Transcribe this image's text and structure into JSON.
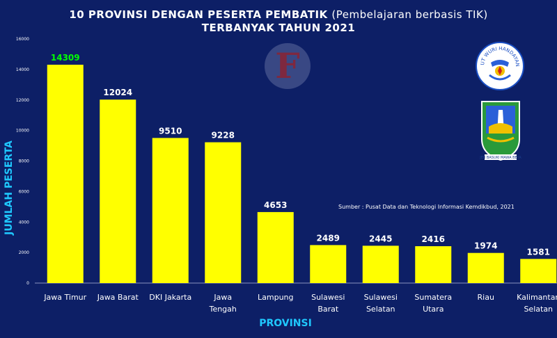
{
  "header": {
    "title_bold": "10 PROVINSI DENGAN PESERTA PEMBATIK",
    "title_paren": "(Pembelajaran berbasis TIK)",
    "title_line2": "TERBANYAK TAHUN 2021"
  },
  "source": "Sumber :  Pusat Data dan Teknologi Informasi Kemdikbud, 2021",
  "watermark": "F",
  "logos": {
    "kemdikbud_text": "TUT WURI HANDAYANI",
    "jatim_text": "JER BASUKI MAWA BEYA"
  },
  "colors": {
    "background": "#0d1f66",
    "bar": "#ffff00",
    "axis_title": "#1fc8ff",
    "highlight_label": "#00ff00",
    "text": "#ffffff"
  },
  "chart_data": {
    "type": "bar",
    "title": "10 PROVINSI DENGAN PESERTA PEMBATIK (Pembelajaran berbasis TIK) TERBANYAK TAHUN 2021",
    "xlabel": "PROVINSI",
    "ylabel": "JUMLAH PESERTA",
    "ylim": [
      0,
      16000
    ],
    "yticks": [
      0,
      2000,
      4000,
      6000,
      8000,
      10000,
      12000,
      14000,
      16000
    ],
    "categories": [
      [
        "Jawa Timur"
      ],
      [
        "Jawa Barat"
      ],
      [
        "DKI Jakarta"
      ],
      [
        "Jawa",
        "Tengah"
      ],
      [
        "Lampung"
      ],
      [
        "Sulawesi",
        "Barat"
      ],
      [
        "Sulawesi",
        "Selatan"
      ],
      [
        "Sumatera",
        "Utara"
      ],
      [
        "Riau"
      ],
      [
        "Kalimantan",
        "Selatan"
      ]
    ],
    "values": [
      14309,
      12024,
      9510,
      9228,
      4653,
      2489,
      2445,
      2416,
      1974,
      1581
    ],
    "grid": false,
    "legend": "none"
  }
}
